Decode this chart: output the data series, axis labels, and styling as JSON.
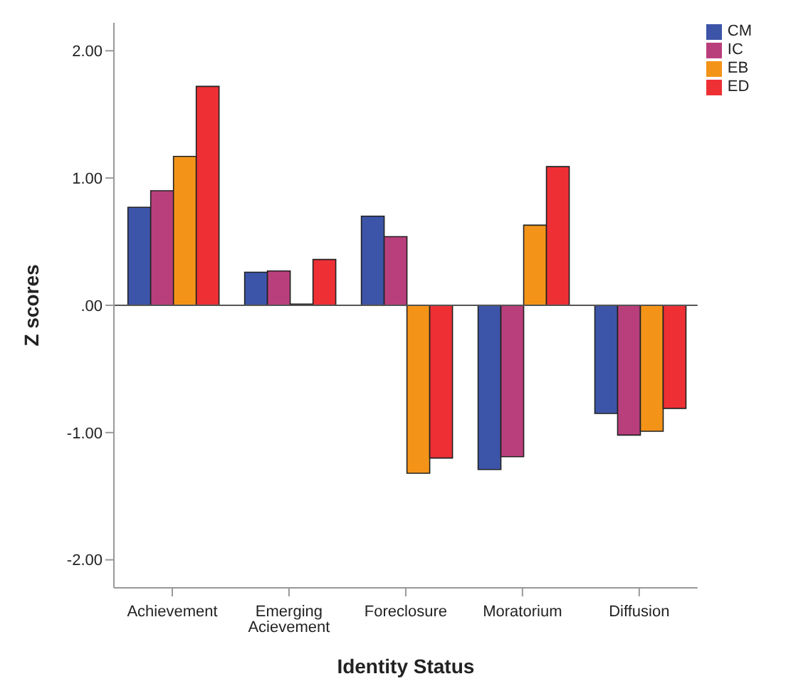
{
  "chart_data": {
    "type": "bar",
    "xlabel": "Identity Status",
    "ylabel": "Z scores",
    "categories": [
      "Achievement",
      "Emerging Acievement",
      "Foreclosure",
      "Moratorium",
      "Diffusion"
    ],
    "series": [
      {
        "name": "CM",
        "color": "#3d55a8",
        "values": [
          0.77,
          0.26,
          0.7,
          -1.29,
          -0.85
        ]
      },
      {
        "name": "IC",
        "color": "#b93f7c",
        "values": [
          0.9,
          0.27,
          0.54,
          -1.19,
          -1.02
        ]
      },
      {
        "name": "EB",
        "color": "#f39419",
        "values": [
          1.17,
          0.01,
          -1.32,
          0.63,
          -0.99
        ]
      },
      {
        "name": "ED",
        "color": "#ee3035",
        "values": [
          1.72,
          0.36,
          -1.2,
          1.09,
          -0.81
        ]
      }
    ],
    "ylim": [
      -2.22,
      2.22
    ],
    "yticks": [
      {
        "value": 2,
        "label": "2.00"
      },
      {
        "value": 1,
        "label": "1.00"
      },
      {
        "value": 0,
        "label": ".00"
      },
      {
        "value": -1,
        "label": "-1.00"
      },
      {
        "value": -2,
        "label": "-2.00"
      }
    ],
    "ref_lines": [
      {
        "axis": "y",
        "value": 0,
        "color": "#555555"
      }
    ],
    "grid": false,
    "legend": "top right"
  }
}
